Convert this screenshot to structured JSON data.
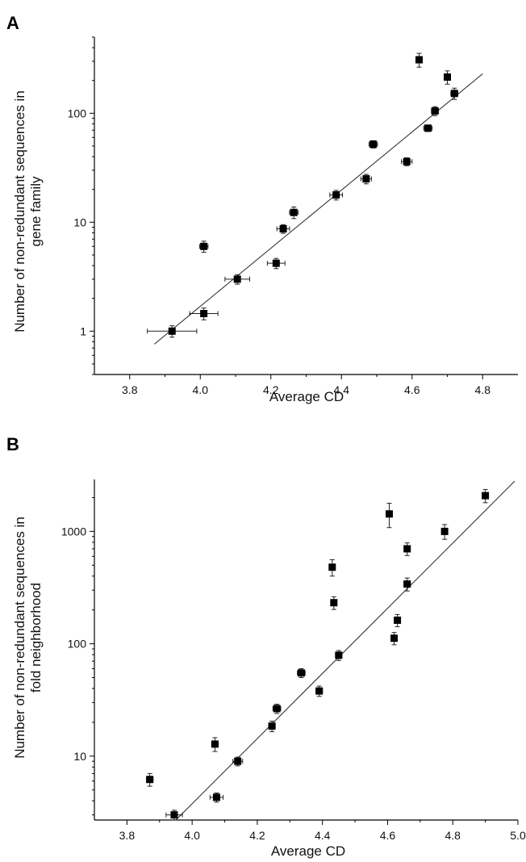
{
  "chart_data": [
    {
      "type": "scatter",
      "panel_label": "A",
      "xlabel": "Average CD",
      "ylabel": "Number of non-redundant sequences in gene family",
      "ylabel_lines": [
        "Number of non-redundant sequences in",
        "gene family"
      ],
      "x_scale": "linear",
      "y_scale": "log",
      "xlim": [
        3.7,
        4.9
      ],
      "ylim": [
        0.4,
        500
      ],
      "x_ticks": [
        3.8,
        4.0,
        4.2,
        4.4,
        4.6,
        4.8
      ],
      "x_tick_labels": [
        "3.8",
        "4.0",
        "4.2",
        "4.4",
        "4.6",
        "4.8"
      ],
      "y_ticks": [
        1,
        10,
        100
      ],
      "y_tick_labels": [
        "1",
        "10",
        "100"
      ],
      "grid": false,
      "points": [
        {
          "x": 3.92,
          "y": 1.0,
          "xerr": 0.07,
          "yerr": 0.12
        },
        {
          "x": 4.01,
          "y": 1.45,
          "xerr": 0.04,
          "yerr": 0.18
        },
        {
          "x": 4.01,
          "y": 6.0,
          "xerr": 0.012,
          "yerr": 0.7
        },
        {
          "x": 4.105,
          "y": 3.0,
          "xerr": 0.035,
          "yerr": 0.3
        },
        {
          "x": 4.215,
          "y": 4.2,
          "xerr": 0.025,
          "yerr": 0.45
        },
        {
          "x": 4.235,
          "y": 8.7,
          "xerr": 0.018,
          "yerr": 0.8
        },
        {
          "x": 4.265,
          "y": 12.3,
          "xerr": 0.012,
          "yerr": 1.5
        },
        {
          "x": 4.385,
          "y": 17.8,
          "xerr": 0.018,
          "yerr": 1.8
        },
        {
          "x": 4.47,
          "y": 25.0,
          "xerr": 0.015,
          "yerr": 2.5
        },
        {
          "x": 4.49,
          "y": 52.0,
          "xerr": 0.012,
          "yerr": 4.0
        },
        {
          "x": 4.585,
          "y": 36.0,
          "xerr": 0.015,
          "yerr": 3.0
        },
        {
          "x": 4.62,
          "y": 310.0,
          "xerr": 0.008,
          "yerr": 45
        },
        {
          "x": 4.645,
          "y": 73.0,
          "xerr": 0.012,
          "yerr": 5
        },
        {
          "x": 4.665,
          "y": 105.0,
          "xerr": 0.01,
          "yerr": 10
        },
        {
          "x": 4.7,
          "y": 215.0,
          "xerr": 0.008,
          "yerr": 30
        },
        {
          "x": 4.72,
          "y": 152.0,
          "xerr": 0.01,
          "yerr": 18
        }
      ],
      "fit_line": {
        "x": [
          3.87,
          4.8
        ],
        "y": [
          0.76,
          230
        ]
      }
    },
    {
      "type": "scatter",
      "panel_label": "B",
      "xlabel": "Average CD",
      "ylabel": "Number of non-redundant sequences in fold neighborhood",
      "ylabel_lines": [
        "Number of non-redundant sequences in",
        "fold neighborhood"
      ],
      "x_scale": "linear",
      "y_scale": "log",
      "xlim": [
        3.7,
        5.0
      ],
      "ylim": [
        2.7,
        2900
      ],
      "x_ticks": [
        3.8,
        4.0,
        4.2,
        4.4,
        4.6,
        4.8,
        5.0
      ],
      "x_tick_labels": [
        "3.8",
        "4.0",
        "4.2",
        "4.4",
        "4.6",
        "4.8",
        "5.0"
      ],
      "y_ticks": [
        10,
        100,
        1000
      ],
      "y_tick_labels": [
        "10",
        "100",
        "1000"
      ],
      "grid": false,
      "points": [
        {
          "x": 3.87,
          "y": 6.2,
          "xerr": 0.01,
          "yerr": 0.8
        },
        {
          "x": 3.945,
          "y": 3.0,
          "xerr": 0.025,
          "yerr": 0.3
        },
        {
          "x": 4.07,
          "y": 12.8,
          "xerr": 0.01,
          "yerr": 1.8
        },
        {
          "x": 4.075,
          "y": 4.3,
          "xerr": 0.02,
          "yerr": 0.4
        },
        {
          "x": 4.14,
          "y": 9.0,
          "xerr": 0.015,
          "yerr": 0.8
        },
        {
          "x": 4.245,
          "y": 18.5,
          "xerr": 0.01,
          "yerr": 2.0
        },
        {
          "x": 4.26,
          "y": 26.5,
          "xerr": 0.012,
          "yerr": 2.5
        },
        {
          "x": 4.335,
          "y": 55.0,
          "xerr": 0.012,
          "yerr": 5
        },
        {
          "x": 4.39,
          "y": 38.0,
          "xerr": 0.01,
          "yerr": 4
        },
        {
          "x": 4.43,
          "y": 480.0,
          "xerr": 0.008,
          "yerr": 80
        },
        {
          "x": 4.435,
          "y": 232.0,
          "xerr": 0.008,
          "yerr": 30
        },
        {
          "x": 4.45,
          "y": 79.0,
          "xerr": 0.01,
          "yerr": 8
        },
        {
          "x": 4.605,
          "y": 1430.0,
          "xerr": 0.008,
          "yerr": 350
        },
        {
          "x": 4.62,
          "y": 112.0,
          "xerr": 0.008,
          "yerr": 14
        },
        {
          "x": 4.63,
          "y": 162.0,
          "xerr": 0.008,
          "yerr": 20
        },
        {
          "x": 4.66,
          "y": 700.0,
          "xerr": 0.008,
          "yerr": 90
        },
        {
          "x": 4.66,
          "y": 340.0,
          "xerr": 0.01,
          "yerr": 45
        },
        {
          "x": 4.775,
          "y": 1000.0,
          "xerr": 0.008,
          "yerr": 150
        },
        {
          "x": 4.9,
          "y": 2080.0,
          "xerr": 0.008,
          "yerr": 280
        }
      ],
      "fit_line": {
        "x": [
          3.95,
          4.99
        ],
        "y": [
          2.7,
          2800
        ]
      }
    }
  ]
}
